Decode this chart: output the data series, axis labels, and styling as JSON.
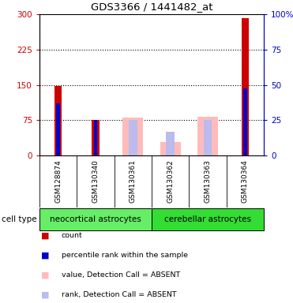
{
  "title": "GDS3366 / 1441482_at",
  "categories": [
    "GSM128874",
    "GSM130340",
    "GSM130361",
    "GSM130362",
    "GSM130363",
    "GSM130364"
  ],
  "cell_type_groups": [
    {
      "label": "neocortical astrocytes",
      "start": 0,
      "end": 3,
      "color": "#66ee66"
    },
    {
      "label": "cerebellar astrocytes",
      "start": 3,
      "end": 6,
      "color": "#33dd33"
    }
  ],
  "count_values": [
    147,
    75,
    0,
    0,
    0,
    292
  ],
  "count_color": "#cc0000",
  "percentile_values": [
    110,
    75,
    0,
    0,
    0,
    143
  ],
  "percentile_color": "#0000cc",
  "absent_value_values": [
    0,
    0,
    80,
    28,
    82,
    0
  ],
  "absent_value_color": "#ffbbbb",
  "absent_rank_values": [
    0,
    0,
    75,
    50,
    75,
    0
  ],
  "absent_rank_color": "#bbbbee",
  "ylim_left": [
    0,
    300
  ],
  "ylim_right": [
    0,
    100
  ],
  "yticks_left": [
    0,
    75,
    150,
    225,
    300
  ],
  "yticks_right": [
    0,
    25,
    50,
    75,
    100
  ],
  "ytick_labels_left": [
    "0",
    "75",
    "150",
    "225",
    "300"
  ],
  "ytick_labels_right": [
    "0",
    "25",
    "50",
    "75",
    "100%"
  ],
  "left_color": "#cc0000",
  "right_color": "#0000cc",
  "grid_lines": [
    75,
    150,
    225
  ],
  "bar_width": 0.55,
  "bg_color": "#cccccc",
  "plot_bg": "#ffffff",
  "cell_type_label": "cell type",
  "legend_items": [
    {
      "color": "#cc0000",
      "label": "count"
    },
    {
      "color": "#0000cc",
      "label": "percentile rank within the sample"
    },
    {
      "color": "#ffbbbb",
      "label": "value, Detection Call = ABSENT"
    },
    {
      "color": "#bbbbee",
      "label": "rank, Detection Call = ABSENT"
    }
  ]
}
